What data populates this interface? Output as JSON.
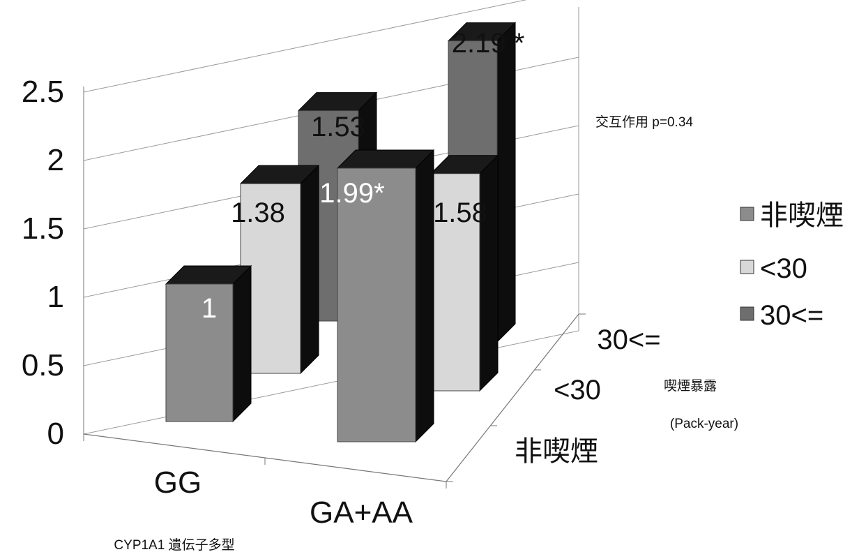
{
  "chart_data": {
    "type": "bar",
    "subtype": "3d-clustered-column",
    "categories": [
      "GG",
      "GA+AA"
    ],
    "depth_categories": [
      "非喫煙",
      "<30",
      "30<="
    ],
    "series": [
      {
        "name": "非喫煙",
        "values": [
          1,
          1.99
        ],
        "labels": [
          "1",
          "1.99*"
        ],
        "color": "#8c8c8c"
      },
      {
        "name": "<30",
        "values": [
          1.38,
          1.58
        ],
        "labels": [
          "1.38",
          "1.58"
        ],
        "color": "#d8d8d8"
      },
      {
        "name": "30<=",
        "values": [
          1.53,
          2.19
        ],
        "labels": [
          "1.53",
          "2.19 *"
        ],
        "color": "#6e6e6e"
      }
    ],
    "yticks": [
      "0",
      "0.5",
      "1",
      "1.5",
      "2",
      "2.5"
    ],
    "ylim": [
      0,
      2.5
    ],
    "xlabel": "CYP1A1 遺伝子多型",
    "depth_label": "喫煙暴露",
    "depth_unit": "(Pack-year)",
    "annotation": "交互作用 p=0.34",
    "legend": {
      "position": "right",
      "entries": [
        "非喫煙",
        "<30",
        "30<="
      ]
    },
    "grid": true
  }
}
